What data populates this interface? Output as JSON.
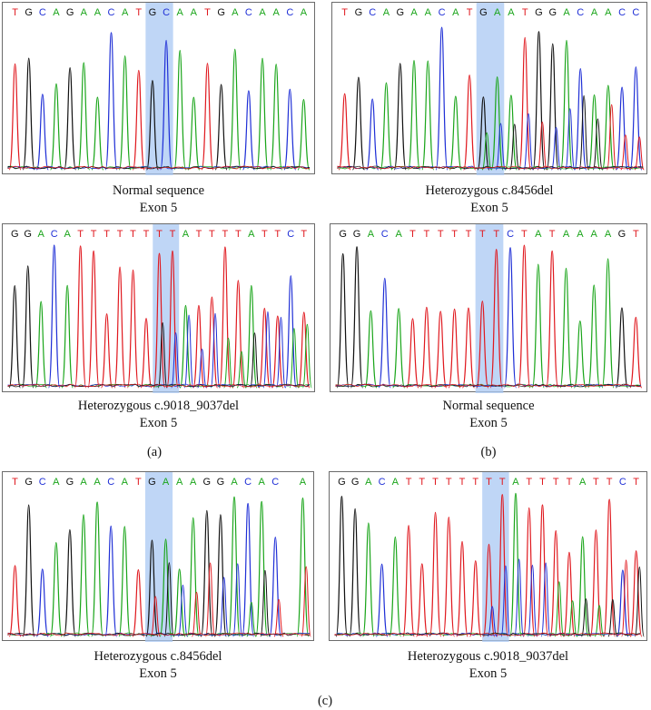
{
  "colors": {
    "A": "#1aa51a",
    "C": "#1f2fd6",
    "G": "#111111",
    "T": "#e0191f",
    "highlight": "#a9c8f3"
  },
  "panels": [
    {
      "id": "p1",
      "bases": "TGCAGAACATGCAATGACAACA",
      "highlight": [
        10,
        11
      ],
      "mixed": false,
      "caption": [
        "Normal sequence",
        "Exon 5"
      ]
    },
    {
      "id": "p2",
      "bases": "TGCAGAACATGAATGGACAACC",
      "highlight": [
        10,
        11
      ],
      "mixed": true,
      "caption": [
        "Heterozygous c.8456del",
        "Exon 5"
      ]
    },
    {
      "id": "p3",
      "bases": "GGACATTTTTTTTATTTTATTCT",
      "highlight": [
        11,
        12
      ],
      "mixed": true,
      "caption": [
        "Heterozygous c.9018_9037del",
        "Exon 5"
      ]
    },
    {
      "id": "p4",
      "bases": "GGACATTTTTTTCTATAAAAGT",
      "highlight": [
        10,
        11
      ],
      "mixed": false,
      "caption": [
        "Normal sequence",
        "Exon 5"
      ]
    },
    {
      "id": "p5",
      "bases": "TGCAGAACATGAAAGGACAC A",
      "highlight": [
        10,
        11
      ],
      "mixed": true,
      "caption": [
        "Heterozygous c.8456del",
        "Exon 5"
      ]
    },
    {
      "id": "p6",
      "bases": "GGACATTTTTTTTATTTTATTCT",
      "highlight": [
        11,
        12
      ],
      "mixed": true,
      "caption": [
        "Heterozygous c.9018_9037del",
        "Exon 5"
      ]
    }
  ],
  "group_labels": {
    "a": "(a)",
    "b": "(b)",
    "c": "(c)"
  }
}
